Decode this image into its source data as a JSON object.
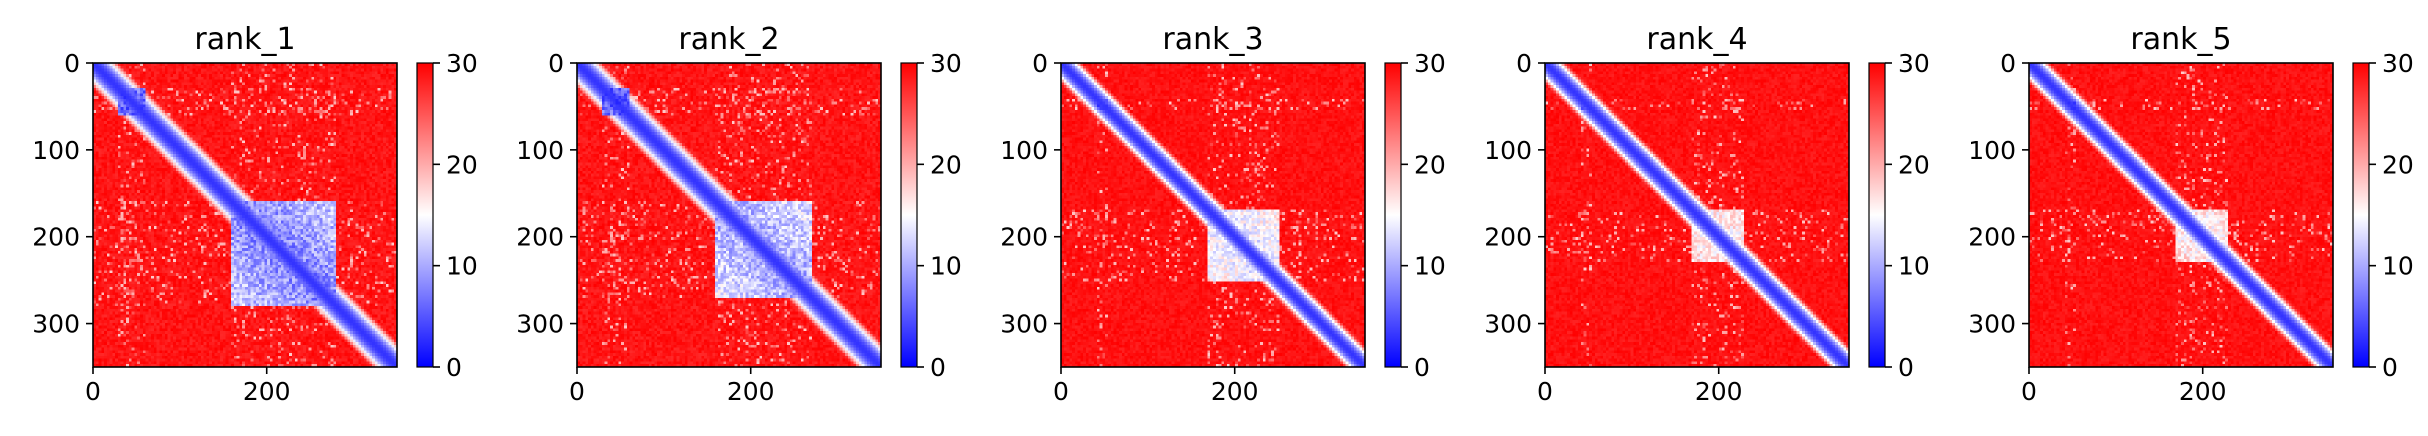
{
  "figure": {
    "panel_count": 5
  },
  "chart_data": [
    {
      "type": "heatmap",
      "title": "rank_1",
      "x_ticks": [
        0,
        200
      ],
      "y_ticks": [
        0,
        100,
        200,
        300
      ],
      "x_range": [
        0,
        350
      ],
      "y_range": [
        350,
        0
      ],
      "colorbar": {
        "ticks": [
          0,
          10,
          20,
          30
        ],
        "range": [
          0,
          30
        ],
        "colormap": "bwr",
        "colors": [
          "#0000ff",
          "#ffffff",
          "#ff0000"
        ]
      },
      "features": {
        "diagonal_width": 10,
        "domain_blocks": [
          [
            160,
            280,
            4
          ],
          [
            30,
            60,
            2
          ]
        ],
        "texture": 0.6
      }
    },
    {
      "type": "heatmap",
      "title": "rank_2",
      "x_ticks": [
        0,
        200
      ],
      "y_ticks": [
        0,
        100,
        200,
        300
      ],
      "x_range": [
        0,
        350
      ],
      "y_range": [
        350,
        0
      ],
      "colorbar": {
        "ticks": [
          0,
          10,
          20,
          30
        ],
        "range": [
          0,
          30
        ],
        "colormap": "bwr",
        "colors": [
          "#0000ff",
          "#ffffff",
          "#ff0000"
        ]
      },
      "features": {
        "diagonal_width": 10,
        "domain_blocks": [
          [
            160,
            270,
            6
          ],
          [
            30,
            60,
            2
          ]
        ],
        "texture": 0.6
      }
    },
    {
      "type": "heatmap",
      "title": "rank_3",
      "x_ticks": [
        0,
        200
      ],
      "y_ticks": [
        0,
        100,
        200,
        300
      ],
      "x_range": [
        0,
        350
      ],
      "y_range": [
        350,
        0
      ],
      "colorbar": {
        "ticks": [
          0,
          10,
          20,
          30
        ],
        "range": [
          0,
          30
        ],
        "colormap": "bwr",
        "colors": [
          "#0000ff",
          "#ffffff",
          "#ff0000"
        ]
      },
      "features": {
        "diagonal_width": 8,
        "domain_blocks": [
          [
            170,
            250,
            10
          ],
          [
            40,
            55,
            2
          ]
        ],
        "texture": 0.5
      }
    },
    {
      "type": "heatmap",
      "title": "rank_4",
      "x_ticks": [
        0,
        200
      ],
      "y_ticks": [
        0,
        100,
        200,
        300
      ],
      "x_range": [
        0,
        350
      ],
      "y_range": [
        350,
        0
      ],
      "colorbar": {
        "ticks": [
          0,
          10,
          20,
          30
        ],
        "range": [
          0,
          30
        ],
        "colormap": "bwr",
        "colors": [
          "#0000ff",
          "#ffffff",
          "#ff0000"
        ]
      },
      "features": {
        "diagonal_width": 8,
        "domain_blocks": [
          [
            170,
            230,
            12
          ],
          [
            40,
            55,
            2
          ]
        ],
        "texture": 0.5
      }
    },
    {
      "type": "heatmap",
      "title": "rank_5",
      "x_ticks": [
        0,
        200
      ],
      "y_ticks": [
        0,
        100,
        200,
        300
      ],
      "x_range": [
        0,
        350
      ],
      "y_range": [
        350,
        0
      ],
      "colorbar": {
        "ticks": [
          0,
          10,
          20,
          30
        ],
        "range": [
          0,
          30
        ],
        "colormap": "bwr",
        "colors": [
          "#0000ff",
          "#ffffff",
          "#ff0000"
        ]
      },
      "features": {
        "diagonal_width": 8,
        "domain_blocks": [
          [
            170,
            230,
            12
          ],
          [
            40,
            55,
            2
          ]
        ],
        "texture": 0.5
      }
    }
  ]
}
